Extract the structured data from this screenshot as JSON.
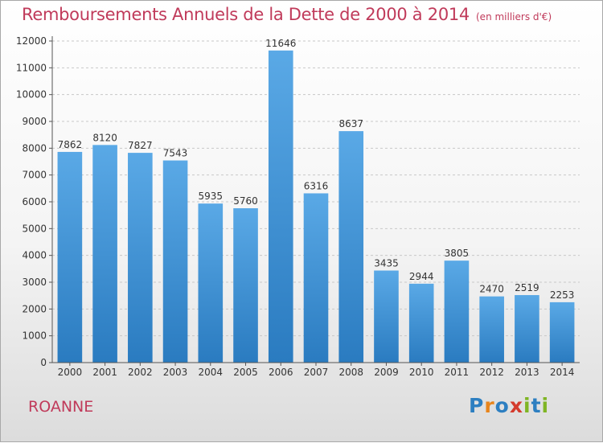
{
  "chart_data": {
    "type": "bar",
    "title": "Remboursements Annuels de la Dette de 2000 à 2014",
    "subtitle": "(en milliers d'€)",
    "categories": [
      "2000",
      "2001",
      "2002",
      "2003",
      "2004",
      "2005",
      "2006",
      "2007",
      "2008",
      "2009",
      "2010",
      "2011",
      "2012",
      "2013",
      "2014"
    ],
    "values": [
      7862,
      8120,
      7827,
      7543,
      5935,
      5760,
      11646,
      6316,
      8637,
      3435,
      2944,
      3805,
      2470,
      2519,
      2253
    ],
    "ylim": [
      0,
      12000
    ],
    "yticks": [
      0,
      1000,
      2000,
      3000,
      4000,
      5000,
      6000,
      7000,
      8000,
      9000,
      10000,
      11000,
      12000
    ],
    "grid": true,
    "bar_color_top": "#5aa9e6",
    "bar_color_bottom": "#2a7bc0"
  },
  "footer": {
    "city": "ROANNE",
    "logo_letters": [
      {
        "ch": "P",
        "color": "#2d7fc1"
      },
      {
        "ch": "r",
        "color": "#e8851c"
      },
      {
        "ch": "o",
        "color": "#2d7fc1"
      },
      {
        "ch": "x",
        "color": "#d43b2d"
      },
      {
        "ch": "i",
        "color": "#7fb524"
      },
      {
        "ch": "t",
        "color": "#2d7fc1"
      },
      {
        "ch": "i",
        "color": "#7fb524"
      }
    ]
  }
}
